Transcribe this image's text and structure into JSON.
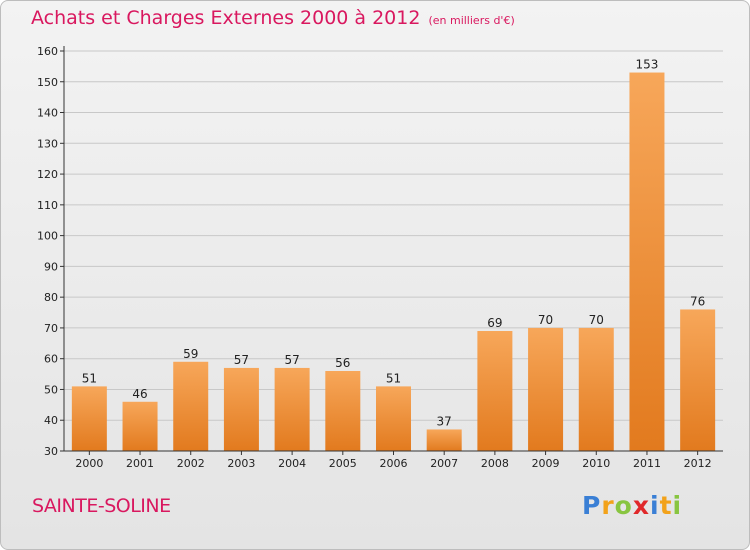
{
  "title": "Achats et Charges Externes 2000 à 2012",
  "unit_label": "(en milliers d'€)",
  "location": "SAINTE-SOLINE",
  "logo": {
    "text": "Proxiti",
    "letters": [
      "P",
      "r",
      "o",
      "x",
      "i",
      "t",
      "i"
    ],
    "letter_colors": [
      "#3a7fd5",
      "#f2a21a",
      "#88c540",
      "#e0282a",
      "#3a7fd5",
      "#f2a21a",
      "#88c540"
    ]
  },
  "colors": {
    "title": "#d9185f",
    "bar_light": "#f7a75a",
    "bar_dark": "#e27a1e",
    "axis": "#333333",
    "grid": "#c8c8c8"
  },
  "chart_data": {
    "type": "bar",
    "title": "Achats et Charges Externes 2000 à 2012",
    "subtitle": "(en milliers d'€)",
    "xlabel": "",
    "ylabel": "",
    "categories": [
      "2000",
      "2001",
      "2002",
      "2003",
      "2004",
      "2005",
      "2006",
      "2007",
      "2008",
      "2009",
      "2010",
      "2011",
      "2012"
    ],
    "values": [
      51,
      46,
      59,
      57,
      57,
      56,
      51,
      37,
      69,
      70,
      70,
      153,
      76
    ],
    "ylim": [
      30,
      160
    ],
    "yticks": [
      30,
      40,
      50,
      60,
      70,
      80,
      90,
      100,
      110,
      120,
      130,
      140,
      150,
      160
    ],
    "grid": true,
    "legend": "none"
  }
}
